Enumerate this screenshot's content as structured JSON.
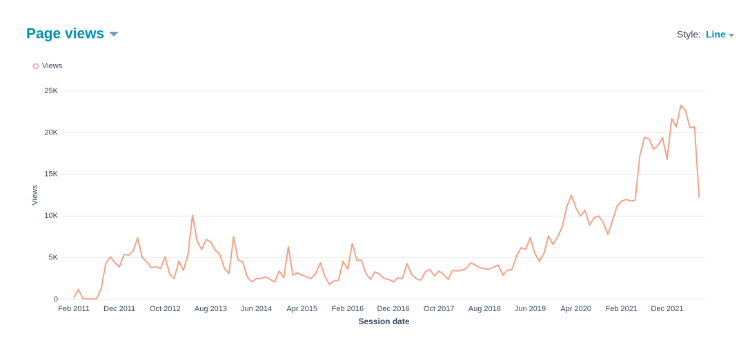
{
  "header": {
    "title": "Page views",
    "style_label": "Style:",
    "style_value": "Line"
  },
  "chart_data": {
    "type": "line",
    "x_label": "Session date",
    "y_label": "Views",
    "categories": [
      "Feb 2011",
      null,
      null,
      null,
      null,
      null,
      null,
      null,
      null,
      null,
      "Dec 2011",
      null,
      null,
      null,
      null,
      null,
      null,
      null,
      null,
      null,
      "Oct 2012",
      null,
      null,
      null,
      null,
      null,
      null,
      null,
      null,
      null,
      "Aug 2013",
      null,
      null,
      null,
      null,
      null,
      null,
      null,
      null,
      null,
      "Jun 2014",
      null,
      null,
      null,
      null,
      null,
      null,
      null,
      null,
      null,
      "Apr 2015",
      null,
      null,
      null,
      null,
      null,
      null,
      null,
      null,
      null,
      "Feb 2016",
      null,
      null,
      null,
      null,
      null,
      null,
      null,
      null,
      null,
      "Dec 2016",
      null,
      null,
      null,
      null,
      null,
      null,
      null,
      null,
      null,
      "Oct 2017",
      null,
      null,
      null,
      null,
      null,
      null,
      null,
      null,
      null,
      "Aug 2018",
      null,
      null,
      null,
      null,
      null,
      null,
      null,
      null,
      null,
      "Jun 2019",
      null,
      null,
      null,
      null,
      null,
      null,
      null,
      null,
      null,
      "Apr 2020",
      null,
      null,
      null,
      null,
      null,
      null,
      null,
      null,
      null,
      "Feb 2021",
      null,
      null,
      null,
      null,
      null,
      null,
      null,
      null,
      null,
      "Dec 2021",
      null,
      null,
      null,
      null,
      null,
      null,
      null
    ],
    "series": [
      {
        "name": "Views",
        "color": "#f5a085",
        "values": [
          200,
          1200,
          100,
          50,
          50,
          50,
          1300,
          4300,
          5100,
          4400,
          3900,
          5400,
          5300,
          5800,
          7400,
          5000,
          4500,
          3800,
          3900,
          3700,
          5100,
          3000,
          2500,
          4600,
          3500,
          5300,
          10100,
          7000,
          6000,
          7200,
          6900,
          5900,
          5400,
          3700,
          3100,
          7500,
          4700,
          4500,
          2700,
          2100,
          2500,
          2500,
          2700,
          2400,
          2100,
          3400,
          2600,
          6300,
          2900,
          3200,
          2900,
          2700,
          2500,
          3100,
          4400,
          2800,
          1800,
          2200,
          2300,
          4600,
          3600,
          6700,
          4700,
          4700,
          3100,
          2400,
          3300,
          3000,
          2500,
          2400,
          2100,
          2600,
          2500,
          4300,
          3000,
          2500,
          2300,
          3300,
          3600,
          2800,
          3400,
          3000,
          2400,
          3500,
          3400,
          3500,
          3700,
          4400,
          4100,
          3800,
          3700,
          3600,
          3900,
          4100,
          2900,
          3500,
          3600,
          5200,
          6200,
          6000,
          7400,
          5500,
          4600,
          5500,
          7600,
          6600,
          7500,
          8700,
          11100,
          12500,
          11000,
          10000,
          10700,
          8900,
          9800,
          10000,
          9200,
          7800,
          9400,
          11200,
          11800,
          12000,
          11800,
          11900,
          17200,
          19400,
          19300,
          18000,
          18500,
          19400,
          16800,
          21700,
          20700,
          23300,
          22700,
          20600,
          20700,
          12200
        ]
      }
    ],
    "ylim": [
      0,
      25000
    ],
    "yticks": [
      {
        "value": 0,
        "label": "0"
      },
      {
        "value": 5000,
        "label": "5K"
      },
      {
        "value": 10000,
        "label": "10K"
      },
      {
        "value": 15000,
        "label": "15K"
      },
      {
        "value": 20000,
        "label": "20K"
      },
      {
        "value": 25000,
        "label": "25K"
      }
    ],
    "grid": true
  }
}
